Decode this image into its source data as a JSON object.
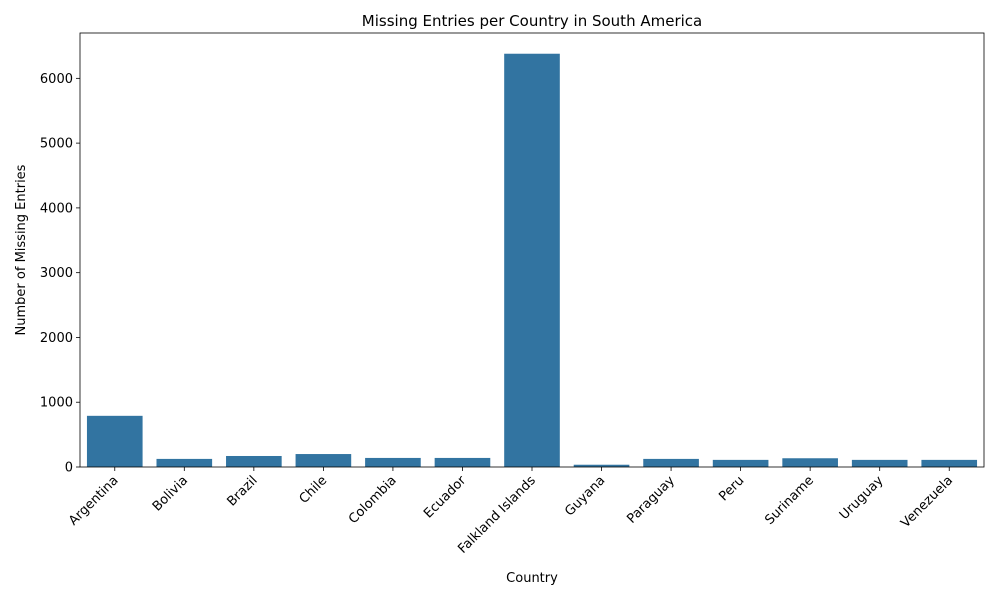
{
  "chart_data": {
    "type": "bar",
    "title": "Missing Entries per Country in South America",
    "xlabel": "Country",
    "ylabel": "Number of Missing Entries",
    "categories": [
      "Argentina",
      "Bolivia",
      "Brazil",
      "Chile",
      "Colombia",
      "Ecuador",
      "Falkland Islands",
      "Guyana",
      "Paraguay",
      "Peru",
      "Suriname",
      "Uruguay",
      "Venezuela"
    ],
    "values": [
      790,
      125,
      170,
      200,
      140,
      140,
      6380,
      35,
      125,
      110,
      135,
      110,
      110
    ],
    "yticks": [
      0,
      1000,
      2000,
      3000,
      4000,
      5000,
      6000
    ],
    "ylim": [
      0,
      6700
    ],
    "bar_color": "#3274a1",
    "grid": false,
    "legend": false
  }
}
